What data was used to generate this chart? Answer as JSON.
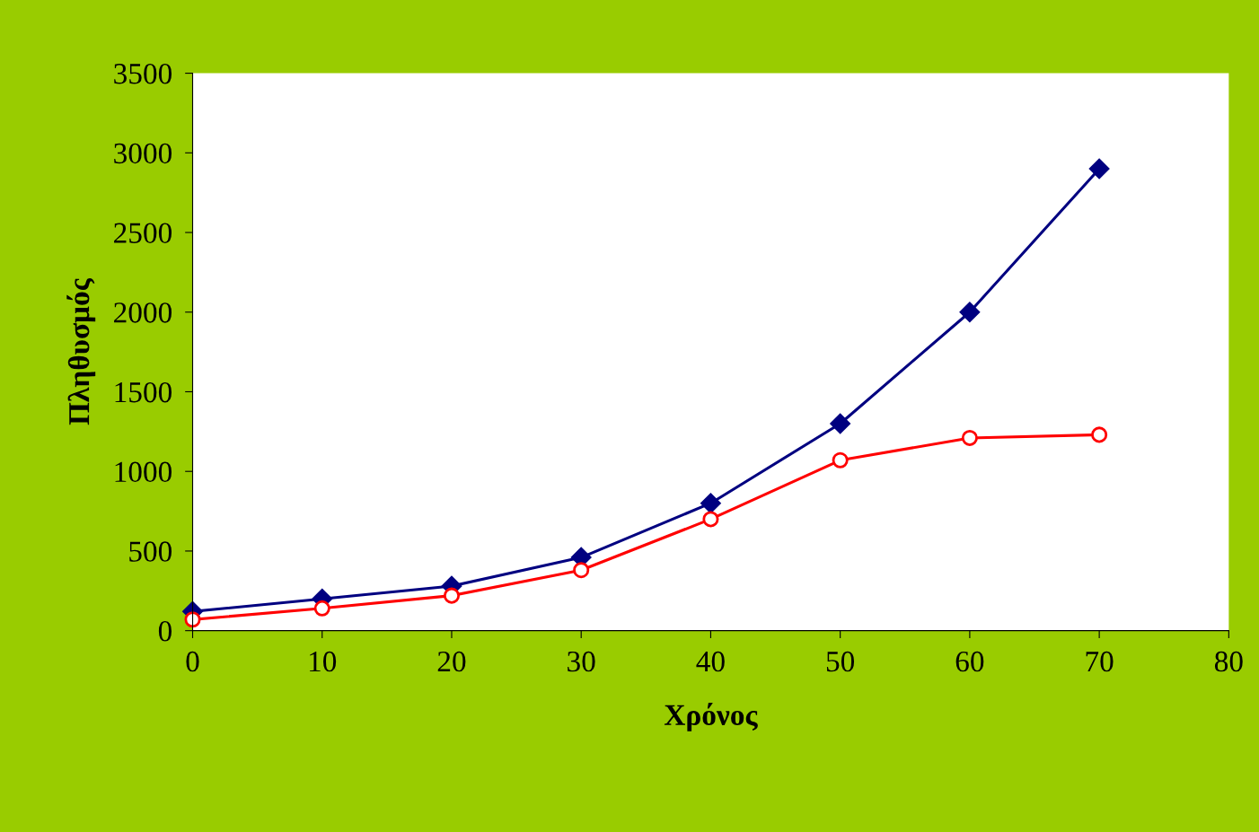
{
  "chart_data": {
    "type": "line",
    "xlabel": "Χρόνος",
    "ylabel": "Πληθυσμός",
    "x": [
      0,
      10,
      20,
      30,
      40,
      50,
      60,
      70
    ],
    "series": [
      {
        "color": "#000080",
        "marker": "diamond",
        "values": [
          120,
          200,
          280,
          460,
          800,
          1300,
          2000,
          2900
        ]
      },
      {
        "color": "#ff0000",
        "marker": "circle",
        "values": [
          70,
          140,
          220,
          380,
          700,
          1070,
          1210,
          1230
        ]
      }
    ],
    "xlim": [
      0,
      80
    ],
    "xticks": [
      0,
      10,
      20,
      30,
      40,
      50,
      60,
      70,
      80
    ],
    "ylim": [
      0,
      3500
    ],
    "yticks": [
      0,
      500,
      1000,
      1500,
      2000,
      2500,
      3000,
      3500
    ],
    "grid": false,
    "legend": false
  }
}
